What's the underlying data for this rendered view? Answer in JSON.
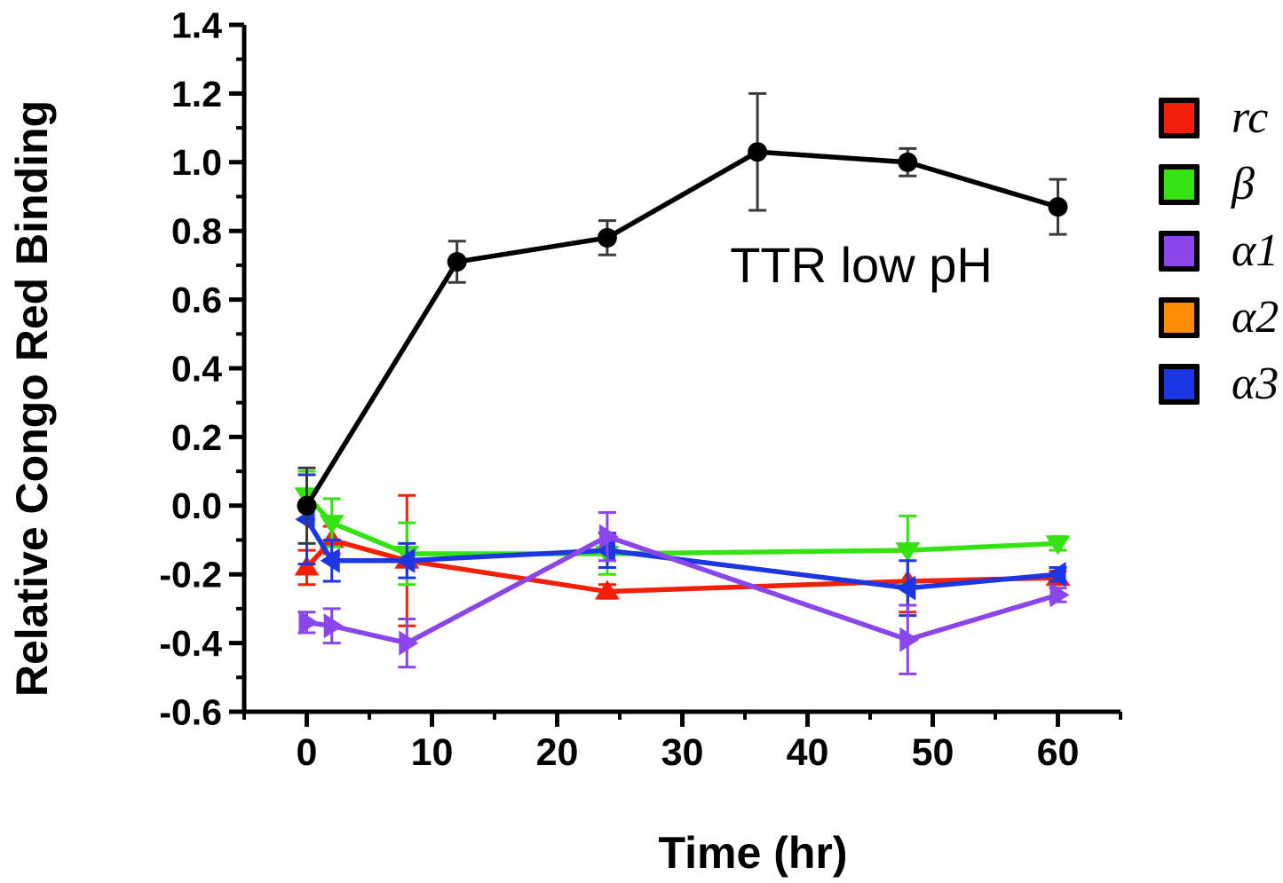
{
  "figure": {
    "ylabel": "Relative Congo Red Binding",
    "xlabel": "Time (hr)",
    "annotation": "TTR low pH"
  },
  "chart_data": {
    "type": "line",
    "title": "",
    "xlabel": "Time (hr)",
    "ylabel": "Relative Congo Red Binding",
    "annotation": {
      "text": "TTR low pH",
      "x": 44,
      "y": 0.72
    },
    "xlim": [
      -5,
      65
    ],
    "ylim": [
      -0.6,
      1.4
    ],
    "grid": false,
    "legend_position": "right-outside",
    "x_tick_values": [
      0,
      10,
      20,
      30,
      40,
      50,
      60
    ],
    "x_tick_labels": [
      "0",
      "10",
      "20",
      "30",
      "40",
      "50",
      "60"
    ],
    "x_minor_step": 5,
    "y_tick_values": [
      -0.6,
      -0.4,
      -0.2,
      0.0,
      0.2,
      0.4,
      0.6,
      0.8,
      1.0,
      1.2,
      1.4
    ],
    "y_tick_labels": [
      "-0.6",
      "-0.4",
      "-0.2",
      "0.0",
      "0.2",
      "0.4",
      "0.6",
      "0.8",
      "1.0",
      "1.2",
      "1.4"
    ],
    "y_minor_step": 0.1,
    "legend": [
      {
        "id": "rc",
        "label": "rc",
        "color": "#f22008"
      },
      {
        "id": "beta",
        "label": "β",
        "color": "#35e312"
      },
      {
        "id": "alpha1",
        "label": "α1",
        "color": "#8a46ea"
      },
      {
        "id": "alpha2",
        "label": "α2",
        "color": "#ff8c05"
      },
      {
        "id": "alpha3",
        "label": "α3",
        "color": "#1b36e2"
      }
    ],
    "series": [
      {
        "id": "rc",
        "name": "rc",
        "color": "#f22008",
        "marker": "triangle-up",
        "x": [
          0,
          2,
          8,
          24,
          48,
          60
        ],
        "y": [
          -0.18,
          -0.1,
          -0.16,
          -0.25,
          -0.22,
          -0.21
        ],
        "yerr": [
          0.05,
          0.04,
          0.19,
          0.02,
          0.09,
          0.02
        ]
      },
      {
        "id": "beta",
        "name": "β",
        "color": "#35e312",
        "marker": "triangle-down",
        "x": [
          0,
          2,
          8,
          24,
          48,
          60
        ],
        "y": [
          0.03,
          -0.05,
          -0.14,
          -0.14,
          -0.13,
          -0.11
        ],
        "yerr": [
          0.07,
          0.07,
          0.09,
          0.06,
          0.1,
          0.02
        ]
      },
      {
        "id": "alpha3",
        "name": "α3",
        "color": "#1b36e2",
        "marker": "triangle-left",
        "x": [
          0,
          2,
          8,
          24,
          48,
          60
        ],
        "y": [
          -0.04,
          -0.16,
          -0.16,
          -0.13,
          -0.24,
          -0.2
        ],
        "yerr": [
          0.13,
          0.06,
          0.05,
          0.05,
          0.08,
          0.02
        ]
      },
      {
        "id": "alpha1",
        "name": "α1",
        "color": "#8a46ea",
        "marker": "triangle-right",
        "x": [
          0,
          2,
          8,
          24,
          48,
          60
        ],
        "y": [
          -0.34,
          -0.35,
          -0.4,
          -0.09,
          -0.39,
          -0.26
        ],
        "yerr": [
          0.03,
          0.05,
          0.07,
          0.07,
          0.1,
          0.02
        ]
      },
      {
        "id": "ttr",
        "name": "TTR low pH",
        "color": "#000000",
        "error_color": "#3a3a3a",
        "marker": "circle",
        "x": [
          0,
          12,
          24,
          36,
          48,
          60
        ],
        "y": [
          0.0,
          0.71,
          0.78,
          1.03,
          1.0,
          0.87
        ],
        "yerr": [
          0.11,
          0.06,
          0.05,
          0.17,
          0.04,
          0.08
        ]
      }
    ],
    "note": "alpha2 (orange) appears in the legend only; no orange data points are visible in the plot."
  }
}
